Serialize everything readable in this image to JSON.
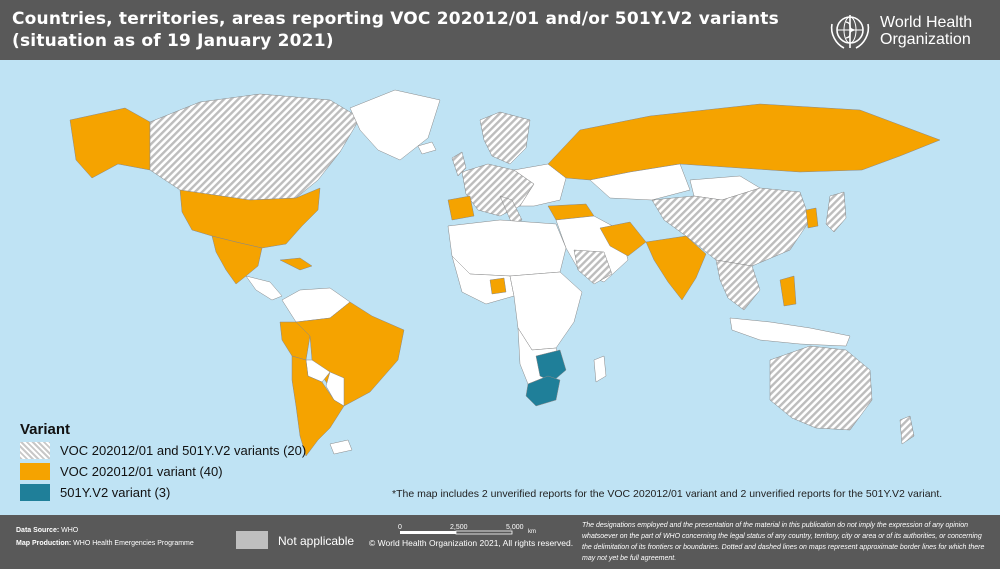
{
  "header": {
    "title_line1": "Countries, territories, areas reporting VOC 202012/01 and/or 501Y.V2 variants",
    "title_line2": "(situation as of 19 January 2021)",
    "logo_line1": "World Health",
    "logo_line2": "Organization",
    "logo_icon": "who-emblem"
  },
  "legend": {
    "title": "Variant",
    "items": [
      {
        "label": "VOC 202012/01 and 501Y.V2 variants (20)",
        "pattern": "hatched",
        "color": "#c8c8c8"
      },
      {
        "label": "VOC 202012/01 variant (40)",
        "color": "#f5a300"
      },
      {
        "label": "501Y.V2 variant (3)",
        "color": "#1f7f99"
      }
    ]
  },
  "footnote": "*The map includes 2 unverified reports for the VOC 202012/01 variant and 2 unverified reports for the 501Y.V2 variant.",
  "footer": {
    "source_label": "Data Source:",
    "source_value": "WHO",
    "production_label": "Map Production:",
    "production_value": "WHO Health Emergencies Programme",
    "not_applicable": "Not applicable",
    "not_applicable_color": "#bfbfbf",
    "scale_ticks": [
      "0",
      "2,500",
      "5,000"
    ],
    "scale_unit": "km",
    "copyright": "© World Health Organization 2021, All rights reserved.",
    "disclaimer": "The designations employed and the presentation of the material in this publication do not imply the expression of any opinion whatsoever on the part of WHO concerning the legal status of any country, territory, city or area or of its authorities, or concerning the delimitation of its frontiers or boundaries. Dotted and dashed lines on maps represent approximate border lines for which there may not yet be full agreement."
  },
  "map": {
    "ocean_color": "#bfe3f4",
    "land_color": "#ffffff",
    "voc_color": "#f5a300",
    "v501_color": "#1f7f99"
  }
}
